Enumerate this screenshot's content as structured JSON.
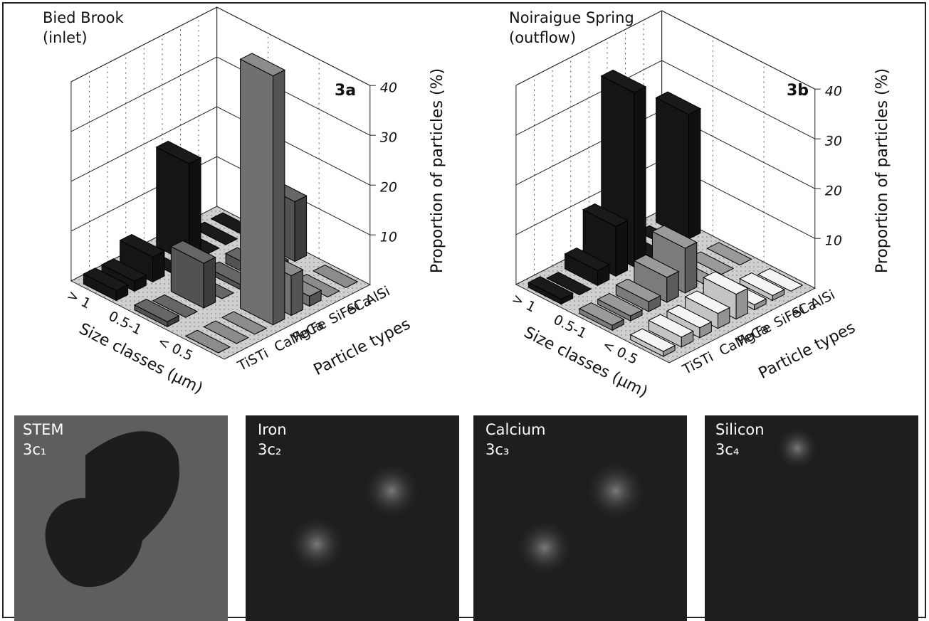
{
  "chart_data": [
    {
      "type": "bar3d",
      "title": "Bied Brook",
      "subtitle": "(inlet)",
      "panel_label": "3a",
      "xlabel": "Particle types",
      "ylabel": "Size classes (µm)",
      "zlabel": "Proportion of particles (%)",
      "categories": [
        "TiS",
        "Ti",
        "CaMg",
        "FeCa",
        "Fe",
        "SiFeCa",
        "Si",
        "AlSi"
      ],
      "series": [
        {
          "name": "< 0.5",
          "color": "#8c8c8c",
          "values": [
            0,
            0,
            0,
            50,
            8,
            2,
            0,
            0
          ]
        },
        {
          "name": "0.5-1",
          "color": "#666666",
          "values": [
            1,
            0,
            9,
            0,
            1,
            2,
            1,
            12
          ]
        },
        {
          "name": "> 1",
          "color": "#1a1a1a",
          "values": [
            2,
            2,
            5,
            0,
            20,
            0,
            0,
            0
          ]
        }
      ],
      "zlim": [
        0,
        40
      ],
      "zticks": [
        10,
        20,
        30,
        40
      ]
    },
    {
      "type": "bar3d",
      "title": "Noiraigue Spring",
      "subtitle": "(outflow)",
      "panel_label": "3b",
      "xlabel": "Particle types",
      "ylabel": "Size classes (µm)",
      "zlabel": "Proportion of particles (%)",
      "categories": [
        "TiS",
        "Ti",
        "CaMg",
        "FeCa",
        "Fe",
        "SiFeCa",
        "Si",
        "AlSi"
      ],
      "series": [
        {
          "name": "< 0.5",
          "color": "#f5f5f5",
          "values": [
            1,
            2,
            2,
            3,
            5,
            1,
            1,
            0
          ]
        },
        {
          "name": "0.5-1",
          "color": "#9a9a9a",
          "values": [
            1,
            1,
            2,
            5,
            9,
            0,
            0,
            0
          ]
        },
        {
          "name": "> 1",
          "color": "#1a1a1a",
          "values": [
            1,
            0,
            3,
            10,
            35,
            0,
            0,
            25
          ]
        }
      ],
      "zlim": [
        0,
        40
      ],
      "zticks": [
        10,
        20,
        30,
        40
      ]
    }
  ],
  "image_panels": [
    {
      "name": "STEM",
      "label": "3c₁"
    },
    {
      "name": "Iron",
      "label": "3c₂"
    },
    {
      "name": "Calcium",
      "label": "3c₃"
    },
    {
      "name": "Silicon",
      "label": "3c₄"
    }
  ]
}
